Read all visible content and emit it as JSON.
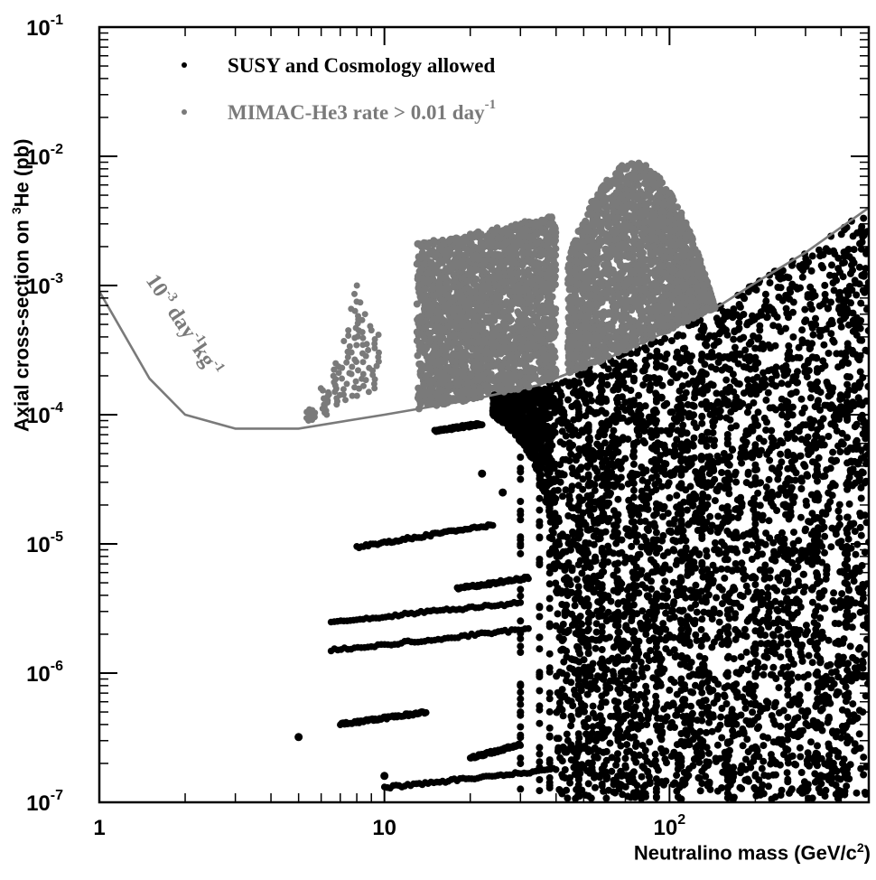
{
  "chart_data": {
    "type": "scatter",
    "x_scale": "log",
    "y_scale": "log",
    "xlim": [
      1,
      500
    ],
    "ylim": [
      1e-07,
      0.1
    ],
    "xlabel": {
      "pre": "Neutralino mass (GeV/c",
      "sup": "2",
      "post": ")"
    },
    "ylabel": {
      "pre": "Axial cross-section on ",
      "sup": "3",
      "post": "He (pb)"
    },
    "x_ticks": [
      {
        "value": 1,
        "base": "1",
        "exp": ""
      },
      {
        "value": 10,
        "base": "10",
        "exp": ""
      },
      {
        "value": 100,
        "base": "10",
        "exp": "2"
      }
    ],
    "y_ticks": [
      {
        "value": 1e-07,
        "base": "10",
        "exp": "-7"
      },
      {
        "value": 1e-06,
        "base": "10",
        "exp": "-6"
      },
      {
        "value": 1e-05,
        "base": "10",
        "exp": "-5"
      },
      {
        "value": 0.0001,
        "base": "10",
        "exp": "-4"
      },
      {
        "value": 0.001,
        "base": "10",
        "exp": "-3"
      },
      {
        "value": 0.01,
        "base": "10",
        "exp": "-2"
      },
      {
        "value": 0.1,
        "base": "10",
        "exp": "-1"
      }
    ],
    "legend": {
      "placement": "top-left",
      "entries": [
        {
          "label": "SUSY and Cosmology allowed",
          "sup": "",
          "color": "#000000"
        },
        {
          "label": "MIMAC-He3 rate > 0.01 day",
          "sup": "-1",
          "color": "#7a7a7a"
        }
      ]
    },
    "curve": {
      "label": {
        "a": "10",
        "a_exp": "-3",
        "b": " day",
        "b_exp": "-1",
        "c": "kg",
        "c_exp": "-1"
      },
      "color": "#7a7a7a",
      "x": [
        1,
        1.5,
        2,
        3,
        5,
        10,
        20,
        35,
        42,
        60,
        100,
        150,
        200,
        300,
        500
      ],
      "y": [
        0.0009,
        0.00019,
        0.0001,
        7.8e-05,
        7.8e-05,
        0.0001,
        0.00013,
        0.00017,
        0.0002,
        0.00027,
        0.00045,
        0.0007,
        0.00105,
        0.0018,
        0.004
      ]
    },
    "series": [
      {
        "name": "SUSY and Cosmology allowed",
        "color": "#000000",
        "bands": [
          {
            "x": [
              15,
              22
            ],
            "y": [
              7.5e-05,
              8.5e-05
            ]
          },
          {
            "x": [
              8,
              24
            ],
            "y": [
              9.5e-06,
              1.4e-05
            ]
          },
          {
            "x": [
              18,
              32
            ],
            "y": [
              4.5e-06,
              5.5e-06
            ]
          },
          {
            "x": [
              6.5,
              30
            ],
            "y": [
              2.5e-06,
              3.5e-06
            ]
          },
          {
            "x": [
              6.5,
              32
            ],
            "y": [
              1.5e-06,
              2.2e-06
            ]
          },
          {
            "x": [
              7,
              14
            ],
            "y": [
              4e-07,
              5e-07
            ]
          },
          {
            "x": [
              10,
              40
            ],
            "y": [
              1.3e-07,
              1.8e-07
            ]
          },
          {
            "x": [
              20,
              30
            ],
            "y": [
              2.2e-07,
              2.8e-07
            ]
          }
        ],
        "points": [
          {
            "x": 5,
            "y": 3.2e-07
          },
          {
            "x": 10,
            "y": 1.6e-07
          },
          {
            "x": 22,
            "y": 3.5e-05
          },
          {
            "x": 26,
            "y": 2.5e-05
          }
        ]
      },
      {
        "name": "MIMAC-He3 rate > 0.01 day-1",
        "color": "#7a7a7a",
        "columns": [
          {
            "x": 5.5,
            "y": [
              9e-05,
              0.00011
            ]
          },
          {
            "x": 6.2,
            "y": [
              0.0001,
              0.00016
            ]
          },
          {
            "x": 6.8,
            "y": [
              0.00012,
              0.00025
            ]
          },
          {
            "x": 7.3,
            "y": [
              0.00013,
              0.00045
            ]
          },
          {
            "x": 7.9,
            "y": [
              0.00014,
              0.00075
            ]
          },
          {
            "x": 8.1,
            "y": [
              0.00014,
              0.001
            ]
          },
          {
            "x": 8.6,
            "y": [
              0.00015,
              0.0006
            ]
          },
          {
            "x": 9.3,
            "y": [
              0.00016,
              0.00045
            ]
          }
        ]
      }
    ]
  }
}
